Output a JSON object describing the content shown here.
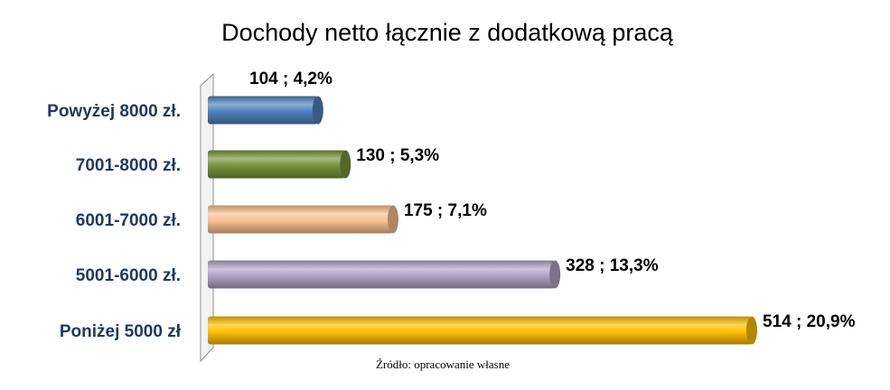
{
  "chart_data": {
    "type": "bar",
    "orientation": "horizontal",
    "title": "Dochody netto łącznie z dodatkową pracą",
    "categories": [
      "Powyżej 8000 zł.",
      "7001-8000 zł.",
      "6001-7000 zł.",
      "5001-6000 zł.",
      "Poniżej 5000 zł"
    ],
    "values": [
      104,
      130,
      175,
      328,
      514
    ],
    "data_labels": [
      "104 ; 4,2%",
      "130 ; 5,3%",
      "175 ; 7,1%",
      "328 ; 13,3%",
      "514 ; 20,9%"
    ],
    "colors": [
      "#4f81bd",
      "#77933c",
      "#fac090",
      "#b3a2c7",
      "#ffc000"
    ],
    "xlim": [
      0,
      514
    ],
    "grid": false,
    "legend": "none"
  },
  "source_note": "Źródło: opracowanie własne"
}
